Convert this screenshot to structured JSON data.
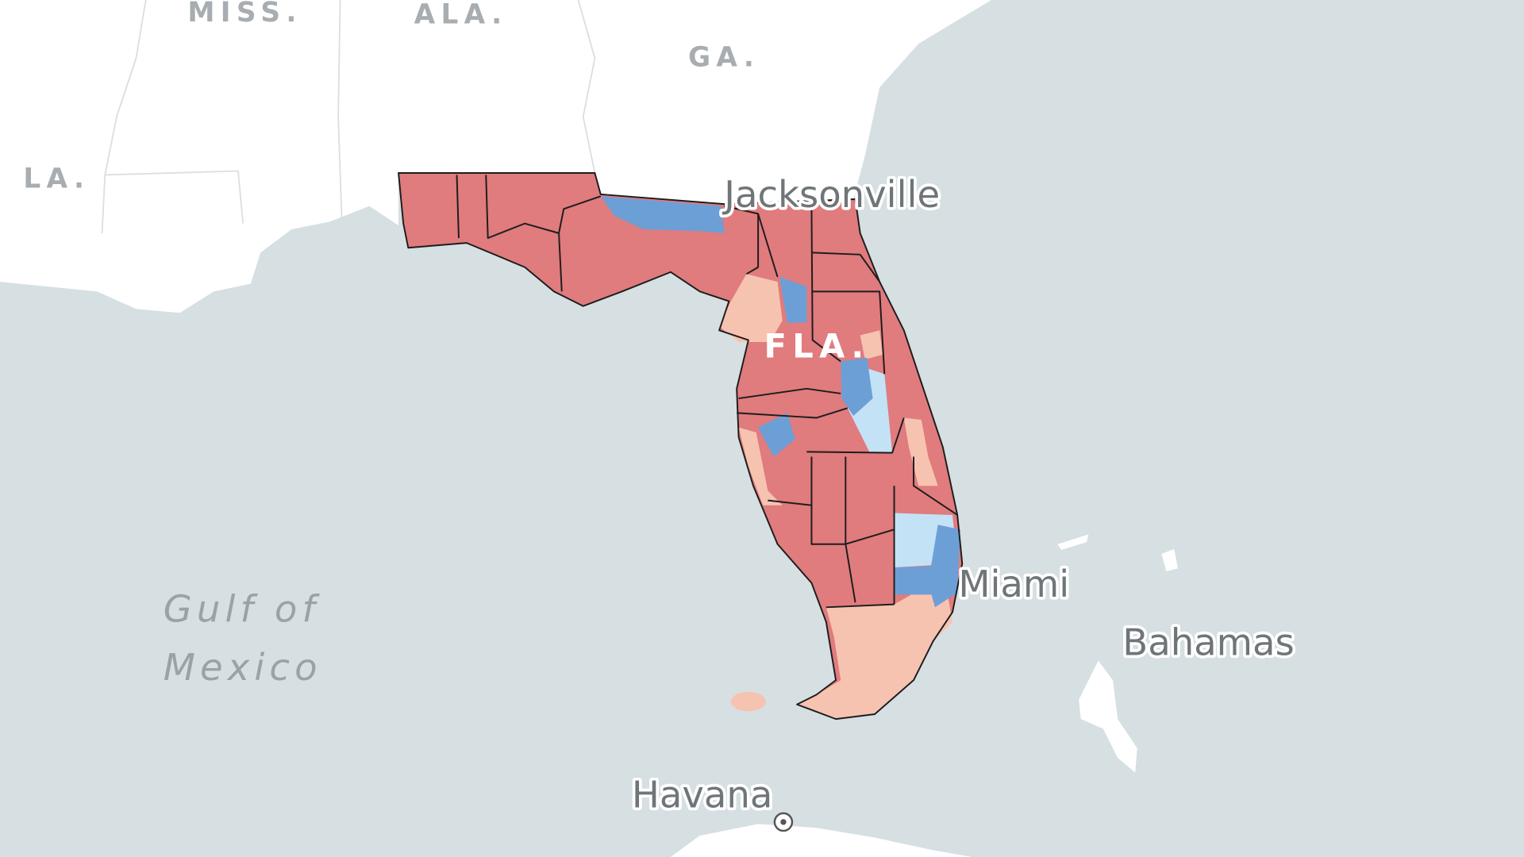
{
  "map": {
    "labels": [
      "MISS.",
      "ALA.",
      "GA.",
      "LA.",
      "Jacksonville",
      "FLA.",
      "Miami",
      "Bahamas",
      "Havana",
      "Gulf of",
      "Mexico"
    ]
  }
}
